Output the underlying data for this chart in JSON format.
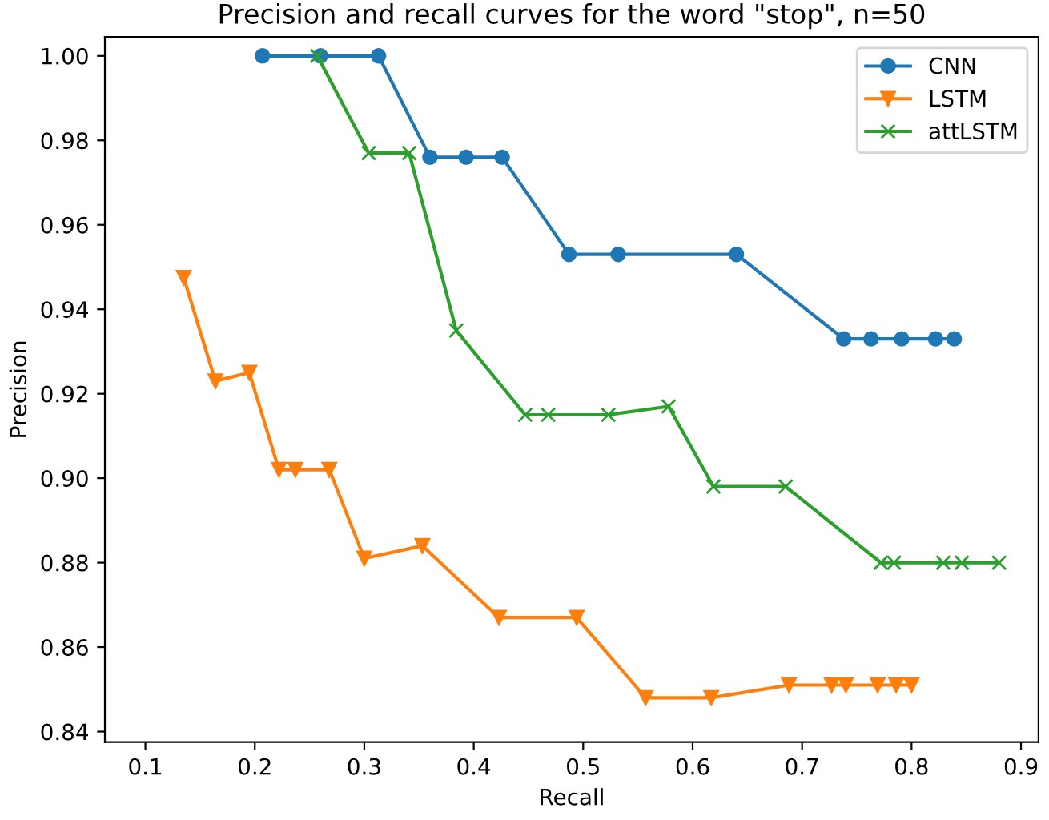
{
  "chart_data": {
    "type": "line",
    "title": "Precision and recall curves for the word \"stop\", n=50",
    "xlabel": "Recall",
    "ylabel": "Precision",
    "xlim": [
      0.063,
      0.916
    ],
    "ylim": [
      0.8375,
      1.0045
    ],
    "xticks": [
      0.1,
      0.2,
      0.3,
      0.4,
      0.5,
      0.6,
      0.7,
      0.8,
      0.9
    ],
    "yticks": [
      0.84,
      0.86,
      0.88,
      {
        "value": 0.9,
        "label": "0.90"
      },
      0.92,
      0.94,
      0.96,
      0.98,
      {
        "value": 1,
        "label": "1.00"
      }
    ],
    "legend": "top right",
    "grid": false,
    "series": [
      {
        "name": "CNN",
        "color": "#1f77b4",
        "marker": "circle",
        "x": [
          0.207,
          0.26,
          0.313,
          0.36,
          0.393,
          0.426,
          0.487,
          0.532,
          0.64,
          0.738,
          0.763,
          0.791,
          0.822,
          0.839
        ],
        "values": [
          1.0,
          1.0,
          1.0,
          0.976,
          0.976,
          0.976,
          0.953,
          0.953,
          0.953,
          0.933,
          0.933,
          0.933,
          0.933,
          0.933
        ]
      },
      {
        "name": "LSTM",
        "color": "#ff7f0e",
        "marker": "triangle",
        "x": [
          0.135,
          0.164,
          0.195,
          0.222,
          0.237,
          0.268,
          0.3,
          0.353,
          0.423,
          0.494,
          0.557,
          0.617,
          0.688,
          0.727,
          0.74,
          0.769,
          0.786,
          0.8
        ],
        "values": [
          0.9475,
          0.923,
          0.925,
          0.902,
          0.902,
          0.902,
          0.881,
          0.884,
          0.867,
          0.867,
          0.848,
          0.848,
          0.851,
          0.851,
          0.851,
          0.851,
          0.851,
          0.851
        ]
      },
      {
        "name": "attLSTM",
        "color": "#2ca02c",
        "marker": "cross",
        "x": [
          0.257,
          0.304,
          0.341,
          0.384,
          0.447,
          0.468,
          0.523,
          0.578,
          0.619,
          0.685,
          0.772,
          0.784,
          0.829,
          0.846,
          0.88
        ],
        "values": [
          1.0,
          0.977,
          0.977,
          0.935,
          0.915,
          0.915,
          0.915,
          0.917,
          0.898,
          0.898,
          0.88,
          0.88,
          0.88,
          0.88,
          0.88
        ]
      }
    ]
  }
}
